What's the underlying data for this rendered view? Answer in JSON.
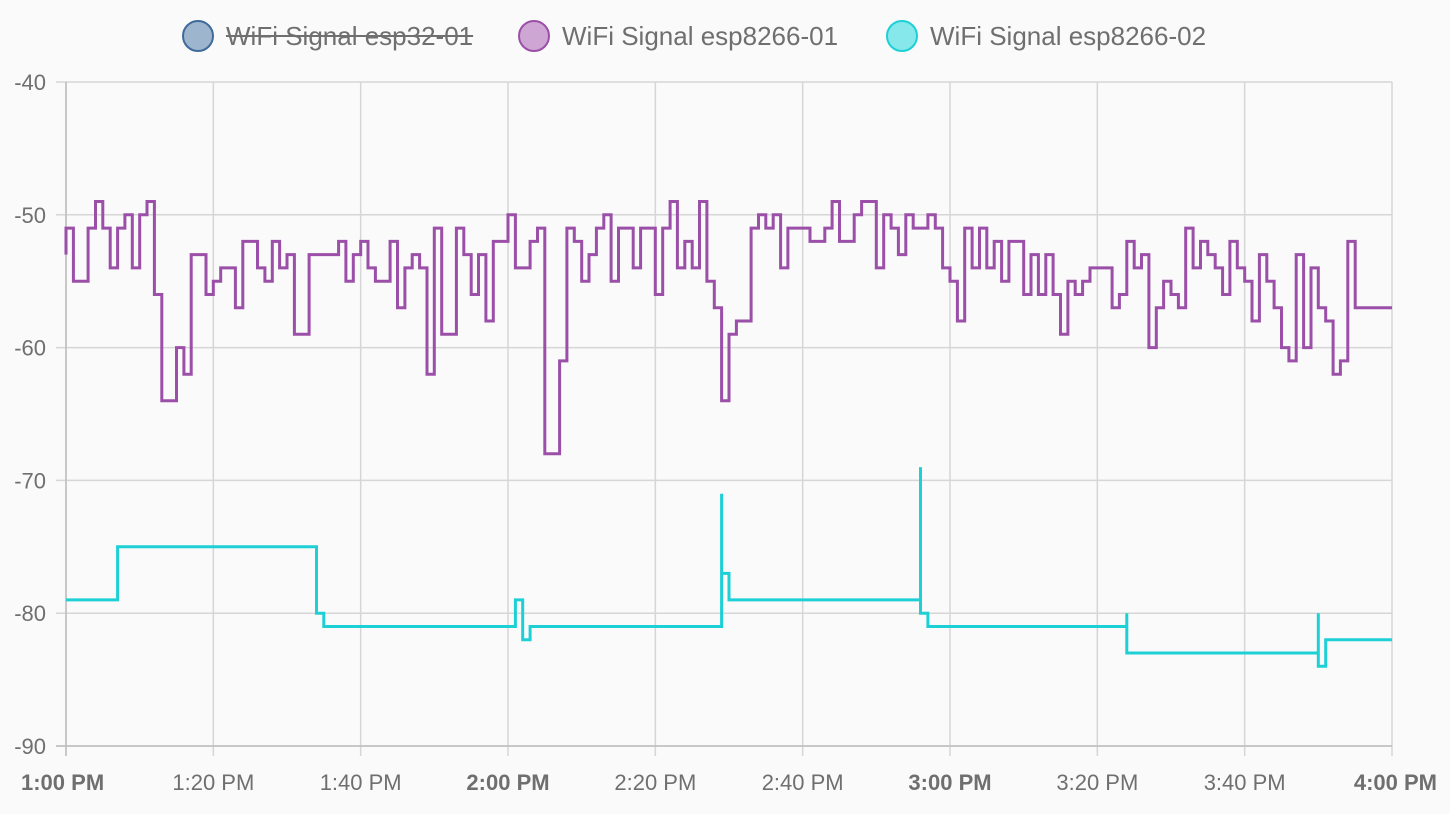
{
  "chart_data": {
    "type": "line",
    "step": true,
    "title": "",
    "xlabel": "",
    "ylabel": "",
    "x_axis": {
      "min": "1:00 PM",
      "max": "4:00 PM",
      "tick_labels": [
        "1:00 PM",
        "1:20 PM",
        "1:40 PM",
        "2:00 PM",
        "2:20 PM",
        "2:40 PM",
        "3:00 PM",
        "3:20 PM",
        "3:40 PM",
        "4:00 PM"
      ],
      "bold_ticks": [
        "1:00 PM",
        "2:00 PM",
        "3:00 PM",
        "4:00 PM"
      ]
    },
    "y_axis": {
      "min": -90,
      "max": -40,
      "tick_labels": [
        "-40",
        "-50",
        "-60",
        "-70",
        "-80",
        "-90"
      ]
    },
    "grid": true,
    "legend": {
      "position": "top-center",
      "items": [
        {
          "label": "WiFi Signal esp32-01",
          "color": "#3e6b9a",
          "fill": "#9db5cd",
          "hidden": true
        },
        {
          "label": "WiFi Signal esp8266-01",
          "color": "#9b4fa8",
          "fill": "#cda6d3",
          "hidden": false
        },
        {
          "label": "WiFi Signal esp8266-02",
          "color": "#1cd0d6",
          "fill": "#86e8eb",
          "hidden": false
        }
      ]
    },
    "series": [
      {
        "name": "WiFi Signal esp32-01",
        "color": "#3e6b9a",
        "hidden": true,
        "points": []
      },
      {
        "name": "WiFi Signal esp8266-01",
        "color": "#9b4fa8",
        "hidden": false,
        "points": [
          [
            "1:00 PM",
            -53
          ],
          [
            "1:00 PM",
            -51
          ],
          [
            "1:01 PM",
            -55
          ],
          [
            "1:03 PM",
            -51
          ],
          [
            "1:04 PM",
            -49
          ],
          [
            "1:05 PM",
            -51
          ],
          [
            "1:06 PM",
            -54
          ],
          [
            "1:07 PM",
            -51
          ],
          [
            "1:08 PM",
            -50
          ],
          [
            "1:09 PM",
            -54
          ],
          [
            "1:10 PM",
            -50
          ],
          [
            "1:11 PM",
            -49
          ],
          [
            "1:12 PM",
            -56
          ],
          [
            "1:13 PM",
            -64
          ],
          [
            "1:15 PM",
            -60
          ],
          [
            "1:16 PM",
            -62
          ],
          [
            "1:17 PM",
            -53
          ],
          [
            "1:19 PM",
            -56
          ],
          [
            "1:20 PM",
            -55
          ],
          [
            "1:21 PM",
            -54
          ],
          [
            "1:23 PM",
            -57
          ],
          [
            "1:24 PM",
            -52
          ],
          [
            "1:26 PM",
            -54
          ],
          [
            "1:27 PM",
            -55
          ],
          [
            "1:28 PM",
            -52
          ],
          [
            "1:29 PM",
            -54
          ],
          [
            "1:30 PM",
            -53
          ],
          [
            "1:31 PM",
            -59
          ],
          [
            "1:33 PM",
            -53
          ],
          [
            "1:37 PM",
            -52
          ],
          [
            "1:38 PM",
            -55
          ],
          [
            "1:39 PM",
            -53
          ],
          [
            "1:40 PM",
            -52
          ],
          [
            "1:41 PM",
            -54
          ],
          [
            "1:42 PM",
            -55
          ],
          [
            "1:44 PM",
            -52
          ],
          [
            "1:45 PM",
            -57
          ],
          [
            "1:46 PM",
            -54
          ],
          [
            "1:47 PM",
            -53
          ],
          [
            "1:48 PM",
            -54
          ],
          [
            "1:49 PM",
            -62
          ],
          [
            "1:50 PM",
            -51
          ],
          [
            "1:51 PM",
            -59
          ],
          [
            "1:53 PM",
            -51
          ],
          [
            "1:54 PM",
            -53
          ],
          [
            "1:55 PM",
            -56
          ],
          [
            "1:56 PM",
            -53
          ],
          [
            "1:57 PM",
            -58
          ],
          [
            "1:58 PM",
            -52
          ],
          [
            "2:00 PM",
            -50
          ],
          [
            "2:01 PM",
            -54
          ],
          [
            "2:03 PM",
            -52
          ],
          [
            "2:04 PM",
            -51
          ],
          [
            "2:05 PM",
            -68
          ],
          [
            "2:07 PM",
            -61
          ],
          [
            "2:08 PM",
            -51
          ],
          [
            "2:09 PM",
            -52
          ],
          [
            "2:10 PM",
            -55
          ],
          [
            "2:11 PM",
            -53
          ],
          [
            "2:12 PM",
            -51
          ],
          [
            "2:13 PM",
            -50
          ],
          [
            "2:14 PM",
            -55
          ],
          [
            "2:15 PM",
            -51
          ],
          [
            "2:17 PM",
            -54
          ],
          [
            "2:18 PM",
            -51
          ],
          [
            "2:20 PM",
            -56
          ],
          [
            "2:21 PM",
            -51
          ],
          [
            "2:22 PM",
            -49
          ],
          [
            "2:23 PM",
            -54
          ],
          [
            "2:24 PM",
            -52
          ],
          [
            "2:25 PM",
            -54
          ],
          [
            "2:26 PM",
            -49
          ],
          [
            "2:27 PM",
            -55
          ],
          [
            "2:28 PM",
            -57
          ],
          [
            "2:29 PM",
            -64
          ],
          [
            "2:30 PM",
            -59
          ],
          [
            "2:31 PM",
            -58
          ],
          [
            "2:33 PM",
            -51
          ],
          [
            "2:34 PM",
            -50
          ],
          [
            "2:35 PM",
            -51
          ],
          [
            "2:36 PM",
            -50
          ],
          [
            "2:37 PM",
            -54
          ],
          [
            "2:38 PM",
            -51
          ],
          [
            "2:41 PM",
            -52
          ],
          [
            "2:43 PM",
            -51
          ],
          [
            "2:44 PM",
            -49
          ],
          [
            "2:45 PM",
            -52
          ],
          [
            "2:47 PM",
            -50
          ],
          [
            "2:48 PM",
            -49
          ],
          [
            "2:50 PM",
            -54
          ],
          [
            "2:51 PM",
            -50
          ],
          [
            "2:52 PM",
            -51
          ],
          [
            "2:53 PM",
            -53
          ],
          [
            "2:54 PM",
            -50
          ],
          [
            "2:55 PM",
            -51
          ],
          [
            "2:57 PM",
            -50
          ],
          [
            "2:58 PM",
            -51
          ],
          [
            "2:59 PM",
            -54
          ],
          [
            "3:00 PM",
            -55
          ],
          [
            "3:01 PM",
            -58
          ],
          [
            "3:02 PM",
            -51
          ],
          [
            "3:03 PM",
            -54
          ],
          [
            "3:04 PM",
            -51
          ],
          [
            "3:05 PM",
            -54
          ],
          [
            "3:06 PM",
            -52
          ],
          [
            "3:07 PM",
            -55
          ],
          [
            "3:08 PM",
            -52
          ],
          [
            "3:10 PM",
            -56
          ],
          [
            "3:11 PM",
            -53
          ],
          [
            "3:12 PM",
            -56
          ],
          [
            "3:13 PM",
            -53
          ],
          [
            "3:14 PM",
            -56
          ],
          [
            "3:15 PM",
            -59
          ],
          [
            "3:16 PM",
            -55
          ],
          [
            "3:17 PM",
            -56
          ],
          [
            "3:18 PM",
            -55
          ],
          [
            "3:19 PM",
            -54
          ],
          [
            "3:22 PM",
            -57
          ],
          [
            "3:23 PM",
            -56
          ],
          [
            "3:24 PM",
            -52
          ],
          [
            "3:25 PM",
            -54
          ],
          [
            "3:26 PM",
            -53
          ],
          [
            "3:27 PM",
            -60
          ],
          [
            "3:28 PM",
            -57
          ],
          [
            "3:29 PM",
            -55
          ],
          [
            "3:30 PM",
            -56
          ],
          [
            "3:31 PM",
            -57
          ],
          [
            "3:32 PM",
            -51
          ],
          [
            "3:33 PM",
            -54
          ],
          [
            "3:34 PM",
            -52
          ],
          [
            "3:35 PM",
            -53
          ],
          [
            "3:36 PM",
            -54
          ],
          [
            "3:37 PM",
            -56
          ],
          [
            "3:38 PM",
            -52
          ],
          [
            "3:39 PM",
            -54
          ],
          [
            "3:40 PM",
            -55
          ],
          [
            "3:41 PM",
            -58
          ],
          [
            "3:42 PM",
            -53
          ],
          [
            "3:43 PM",
            -55
          ],
          [
            "3:44 PM",
            -57
          ],
          [
            "3:45 PM",
            -60
          ],
          [
            "3:46 PM",
            -61
          ],
          [
            "3:47 PM",
            -53
          ],
          [
            "3:48 PM",
            -60
          ],
          [
            "3:49 PM",
            -54
          ],
          [
            "3:50 PM",
            -57
          ],
          [
            "3:51 PM",
            -58
          ],
          [
            "3:52 PM",
            -62
          ],
          [
            "3:53 PM",
            -61
          ],
          [
            "3:54 PM",
            -52
          ],
          [
            "3:55 PM",
            -57
          ],
          [
            "4:00 PM",
            -57
          ]
        ]
      },
      {
        "name": "WiFi Signal esp8266-02",
        "color": "#1cd0d6",
        "hidden": false,
        "points": [
          [
            "1:00 PM",
            -79
          ],
          [
            "1:07 PM",
            -78
          ],
          [
            "1:07 PM",
            -75
          ],
          [
            "1:34 PM",
            -80
          ],
          [
            "1:35 PM",
            -81
          ],
          [
            "2:01 PM",
            -79
          ],
          [
            "2:02 PM",
            -82
          ],
          [
            "2:03 PM",
            -81
          ],
          [
            "2:29 PM",
            -71
          ],
          [
            "2:29 PM",
            -77
          ],
          [
            "2:30 PM",
            -79
          ],
          [
            "2:56 PM",
            -69
          ],
          [
            "2:56 PM",
            -80
          ],
          [
            "2:57 PM",
            -81
          ],
          [
            "3:24 PM",
            -80
          ],
          [
            "3:24 PM",
            -83
          ],
          [
            "3:50 PM",
            -80
          ],
          [
            "3:50 PM",
            -84
          ],
          [
            "3:51 PM",
            -82
          ],
          [
            "4:00 PM",
            -82
          ]
        ]
      }
    ]
  }
}
